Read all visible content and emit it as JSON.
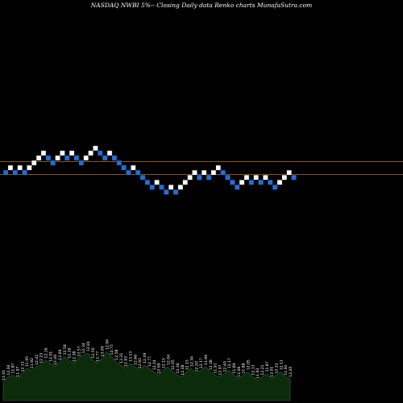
{
  "title": "NASDAQ NWBI 5%--  Closing Daily data  Renko  charts MunafaSutra.com",
  "colors": {
    "background": "#000000",
    "up_brick": "#ffffff",
    "down_brick": "#1e6fe0",
    "brick_border": "#1a1a1a",
    "level_line": "#b5752a",
    "volume_fill": "#0b2b0b",
    "volume_line": "#2e6a2e",
    "label_text": "#ffffff"
  },
  "chart_data": {
    "type": "renko",
    "title": "NASDAQ NWBI 5%--  Closing Daily data  Renko  charts MunafaSutra.com",
    "brick_rule": "5%",
    "grid": false,
    "levels_px_note": "",
    "reference_levels": [
      0,
      -2
    ],
    "bricks": [
      {
        "level": -1,
        "dir": "down"
      },
      {
        "level": 0,
        "dir": "up"
      },
      {
        "level": -1,
        "dir": "down"
      },
      {
        "level": 0,
        "dir": "up"
      },
      {
        "level": -1,
        "dir": "down"
      },
      {
        "level": 0,
        "dir": "up"
      },
      {
        "level": 1,
        "dir": "up"
      },
      {
        "level": 2,
        "dir": "up"
      },
      {
        "level": 3,
        "dir": "up"
      },
      {
        "level": 2,
        "dir": "down"
      },
      {
        "level": 1,
        "dir": "down"
      },
      {
        "level": 2,
        "dir": "up"
      },
      {
        "level": 3,
        "dir": "up"
      },
      {
        "level": 2,
        "dir": "down"
      },
      {
        "level": 3,
        "dir": "up"
      },
      {
        "level": 2,
        "dir": "down"
      },
      {
        "level": 1,
        "dir": "down"
      },
      {
        "level": 2,
        "dir": "up"
      },
      {
        "level": 3,
        "dir": "up"
      },
      {
        "level": 4,
        "dir": "up"
      },
      {
        "level": 3,
        "dir": "down"
      },
      {
        "level": 2,
        "dir": "down"
      },
      {
        "level": 3,
        "dir": "up"
      },
      {
        "level": 2,
        "dir": "down"
      },
      {
        "level": 1,
        "dir": "down"
      },
      {
        "level": 0,
        "dir": "down"
      },
      {
        "level": -1,
        "dir": "down"
      },
      {
        "level": 0,
        "dir": "up"
      },
      {
        "level": -1,
        "dir": "down"
      },
      {
        "level": -2,
        "dir": "down"
      },
      {
        "level": -3,
        "dir": "down"
      },
      {
        "level": -4,
        "dir": "down"
      },
      {
        "level": -3,
        "dir": "up"
      },
      {
        "level": -4,
        "dir": "down"
      },
      {
        "level": -5,
        "dir": "down"
      },
      {
        "level": -4,
        "dir": "up"
      },
      {
        "level": -5,
        "dir": "down"
      },
      {
        "level": -4,
        "dir": "up"
      },
      {
        "level": -3,
        "dir": "up"
      },
      {
        "level": -2,
        "dir": "up"
      },
      {
        "level": -1,
        "dir": "up"
      },
      {
        "level": -2,
        "dir": "down"
      },
      {
        "level": -1,
        "dir": "up"
      },
      {
        "level": -2,
        "dir": "down"
      },
      {
        "level": -1,
        "dir": "up"
      },
      {
        "level": 0,
        "dir": "up"
      },
      {
        "level": -1,
        "dir": "down"
      },
      {
        "level": -2,
        "dir": "down"
      },
      {
        "level": -3,
        "dir": "down"
      },
      {
        "level": -4,
        "dir": "down"
      },
      {
        "level": -3,
        "dir": "up"
      },
      {
        "level": -2,
        "dir": "up"
      },
      {
        "level": -3,
        "dir": "down"
      },
      {
        "level": -2,
        "dir": "up"
      },
      {
        "level": -3,
        "dir": "down"
      },
      {
        "level": -2,
        "dir": "up"
      },
      {
        "level": -3,
        "dir": "down"
      },
      {
        "level": -4,
        "dir": "down"
      },
      {
        "level": -3,
        "dir": "up"
      },
      {
        "level": -2,
        "dir": "up"
      },
      {
        "level": -1,
        "dir": "up"
      },
      {
        "level": -2,
        "dir": "down"
      }
    ],
    "volume_series": {
      "values": [
        22,
        28,
        30,
        26,
        32,
        38,
        36,
        40,
        42,
        48,
        44,
        40,
        46,
        52,
        48,
        44,
        50,
        54,
        56,
        48,
        44,
        50,
        58,
        52,
        46,
        42,
        38,
        44,
        40,
        36,
        42,
        38,
        34,
        30,
        36,
        40,
        34,
        30,
        28,
        34,
        38,
        32,
        36,
        40,
        34,
        30,
        28,
        32,
        36,
        30,
        26,
        30,
        34,
        28,
        24,
        28,
        32,
        26,
        30,
        34,
        28,
        26
      ]
    },
    "volume_labels": [
      "11.01",
      "12.04",
      "11.87",
      "11.97",
      "12.11",
      "11.95",
      "11.92",
      "12.42",
      "12.23",
      "12.16",
      "12.01",
      "12.46",
      "12.69",
      "12.58",
      "12.26",
      "12.38",
      "12.57",
      "12.34",
      "12.81",
      "12.50",
      "12.77",
      "13.09",
      "12.94",
      "12.75",
      "12.58",
      "13.31",
      "12.93",
      "13.13",
      "12.66",
      "12.93",
      "12.49",
      "12.77",
      "12.24",
      "12.09",
      "12.15",
      "12.04",
      "12.05",
      "12.36",
      "12.48",
      "12.15",
      "12.34",
      "12.20",
      "12.17",
      "11.96",
      "12.38",
      "11.91",
      "12.07",
      "12.40",
      "12.17",
      "11.89",
      "12.06",
      "11.88",
      "12.05",
      "12.13",
      "11.93",
      "12.21",
      "11.87",
      "12.01",
      "12.22",
      "12.11",
      "11.91",
      "12.05"
    ]
  }
}
